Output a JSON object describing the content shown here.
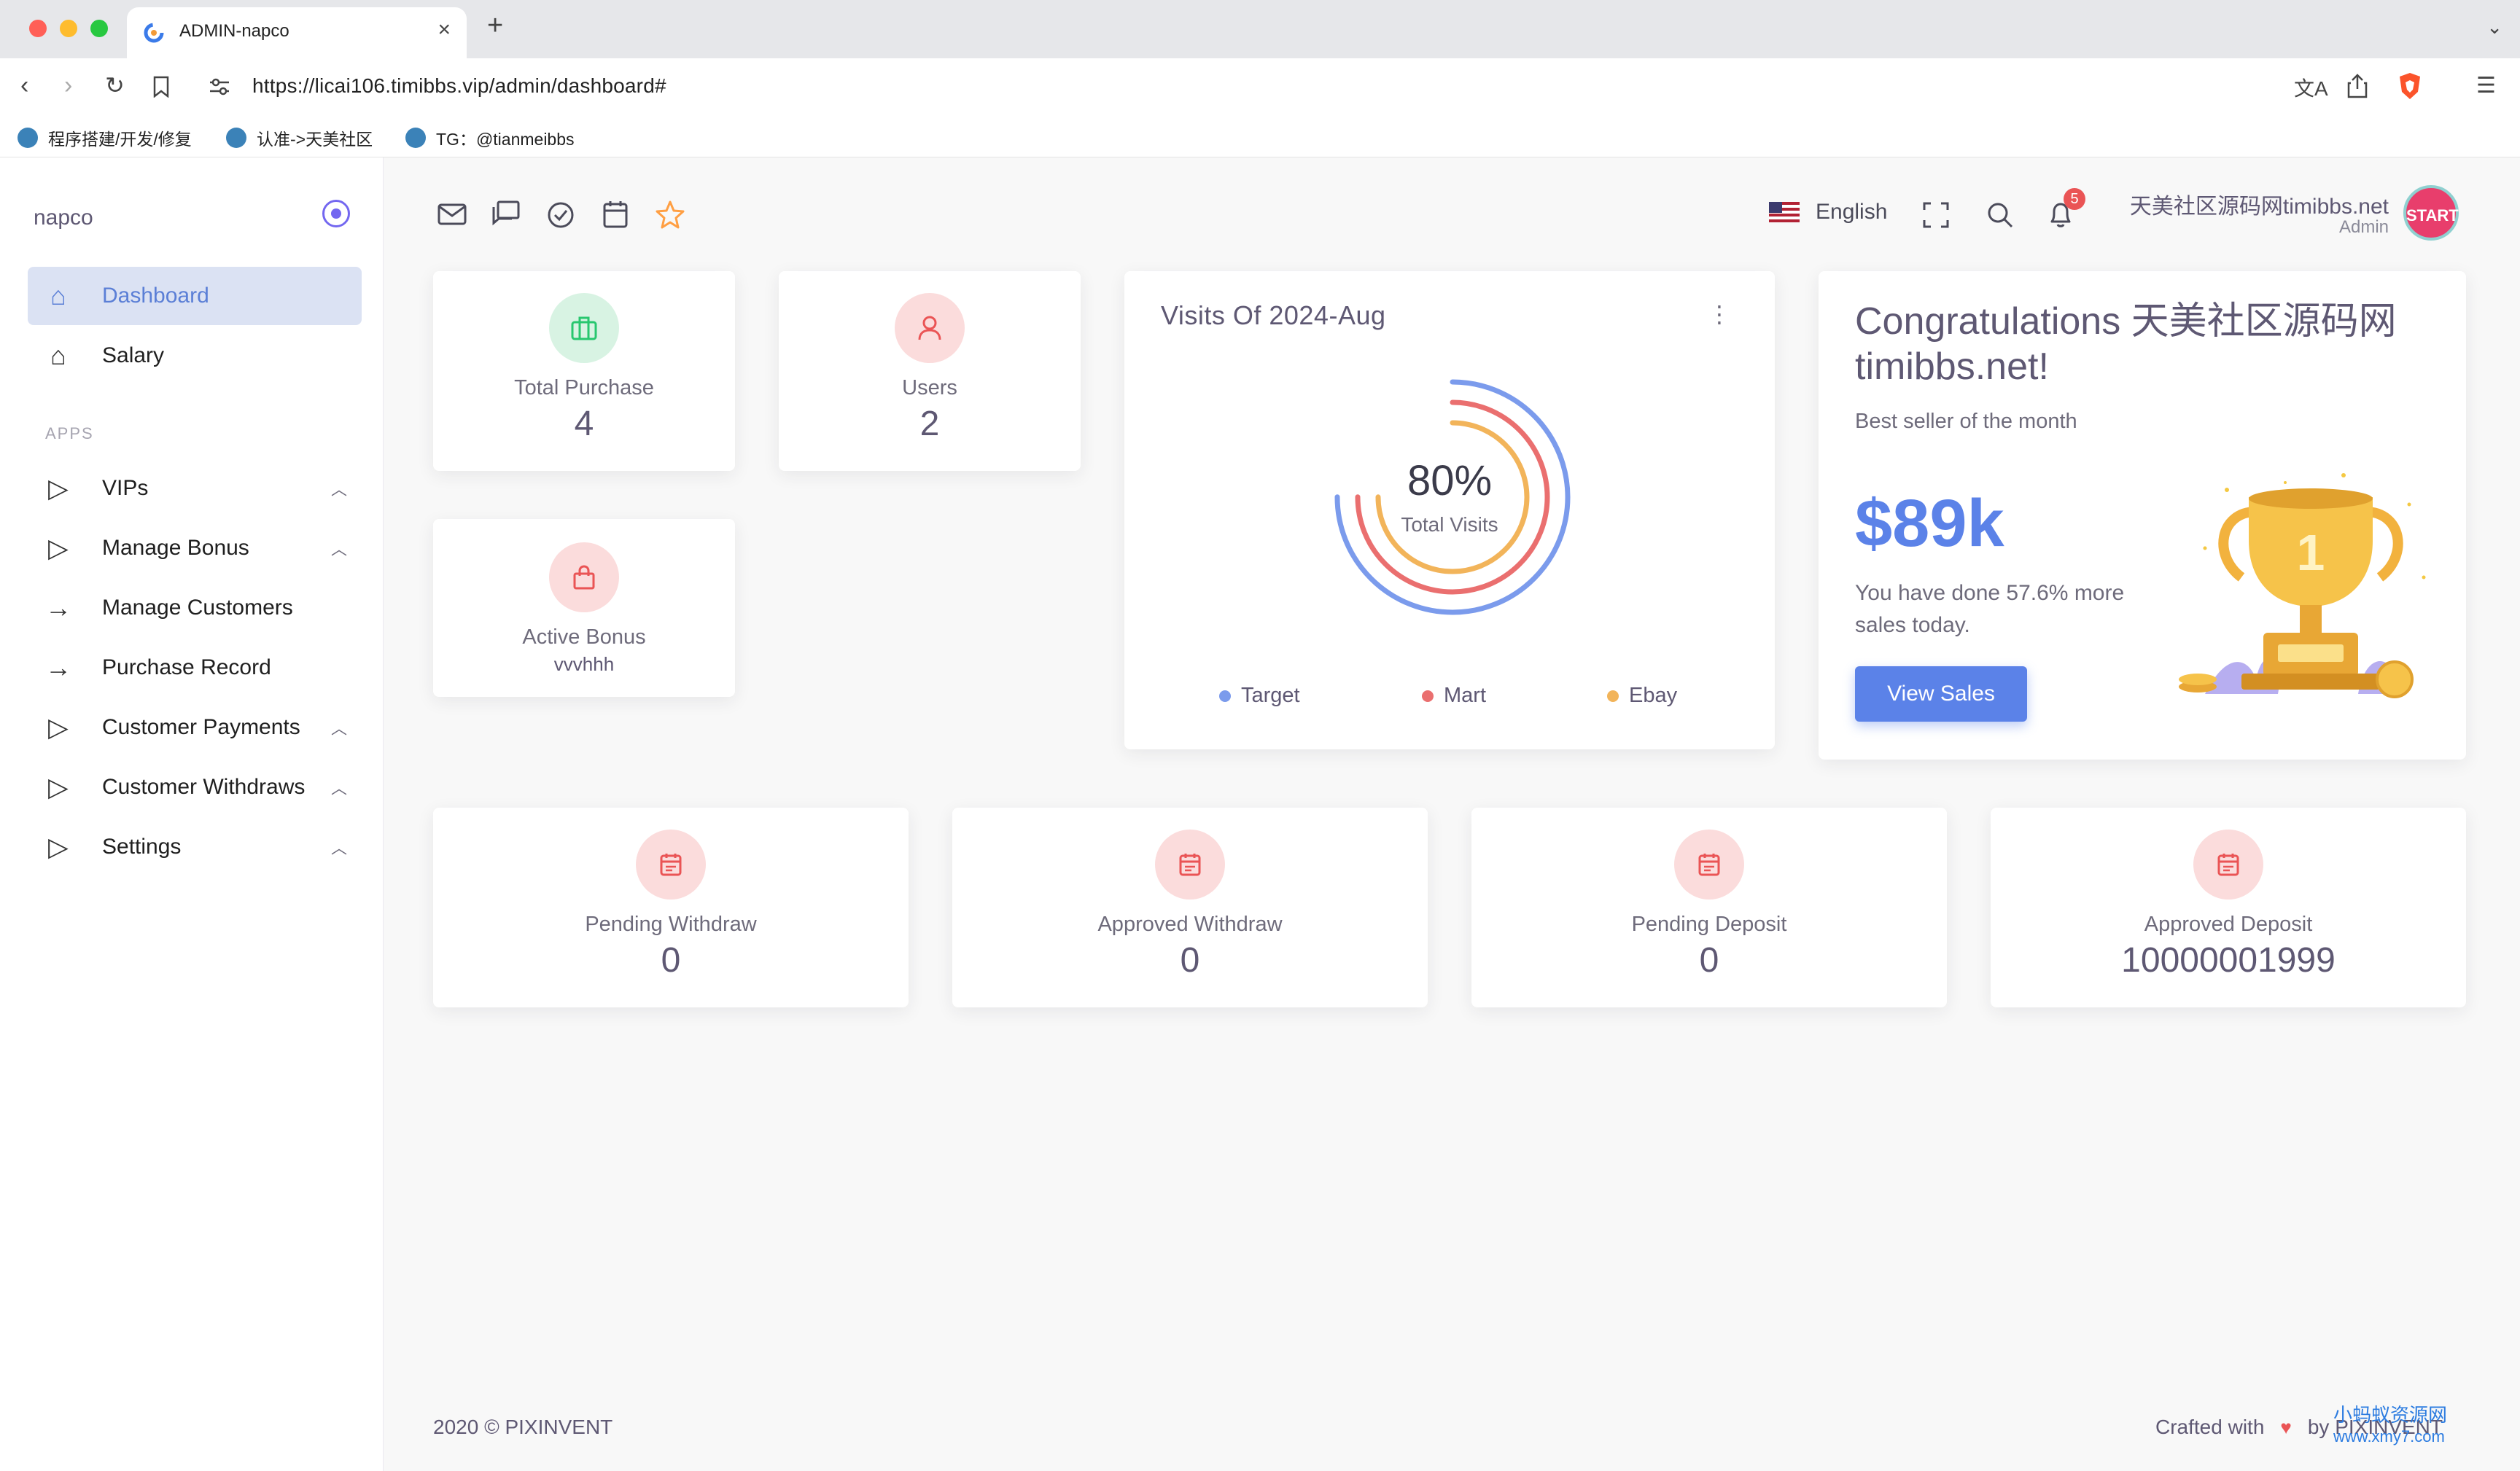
{
  "browser": {
    "tab_title": "ADMIN-napco",
    "url": "https://licai106.timibbs.vip/admin/dashboard#",
    "bookmarks": [
      "程序搭建/开发/修复",
      "认准->天美社区",
      "TG：@tianmeibbs"
    ]
  },
  "sidebar": {
    "brand": "napco",
    "section_label": "APPS",
    "items": [
      {
        "label": "Dashboard",
        "icon": "home-icon",
        "active": true
      },
      {
        "label": "Salary",
        "icon": "home-icon"
      },
      {
        "label": "VIPs",
        "icon": "play-icon",
        "chevron": "^"
      },
      {
        "label": "Manage Bonus",
        "icon": "play-icon",
        "chevron": "^"
      },
      {
        "label": "Manage Customers",
        "icon": "arrow-right-icon"
      },
      {
        "label": "Purchase Record",
        "icon": "arrow-right-icon"
      },
      {
        "label": "Customer Payments",
        "icon": "play-icon",
        "chevron": "^"
      },
      {
        "label": "Customer Withdraws",
        "icon": "play-icon",
        "chevron": "^"
      },
      {
        "label": "Settings",
        "icon": "play-icon",
        "chevron": "^"
      }
    ]
  },
  "header": {
    "language": "English",
    "notification_count": "5",
    "user_name": "天美社区源码网timibbs.net",
    "user_role": "Admin",
    "avatar_text": "START"
  },
  "stats": {
    "total_purchase": {
      "label": "Total Purchase",
      "value": "4"
    },
    "users": {
      "label": "Users",
      "value": "2"
    },
    "active_bonus": {
      "label": "Active Bonus",
      "value": "vvvhhh"
    },
    "pending_withdraw": {
      "label": "Pending Withdraw",
      "value": "0"
    },
    "approved_withdraw": {
      "label": "Approved Withdraw",
      "value": "0"
    },
    "pending_deposit": {
      "label": "Pending Deposit",
      "value": "0"
    },
    "approved_deposit": {
      "label": "Approved Deposit",
      "value": "10000001999"
    }
  },
  "visits": {
    "title": "Visits Of 2024-Aug",
    "center_value": "80%",
    "center_label": "Total Visits",
    "series": [
      {
        "name": "Target",
        "color": "#7b9bec",
        "value": 0.75
      },
      {
        "name": "Mart",
        "color": "#ea6f6f",
        "value": 0.75
      },
      {
        "name": "Ebay",
        "color": "#f2b45a",
        "value": 0.75
      }
    ]
  },
  "congrats": {
    "title": "Congratulations 天美社区源码网 timibbs.net!",
    "subtitle": "Best seller of the month",
    "amount": "$89k",
    "text": "You have done 57.6% more sales today.",
    "button": "View Sales",
    "trophy_number": "1"
  },
  "footer": {
    "left": "2020 © PIXINVENT",
    "crafted": "Crafted with",
    "by": "by PIXINVENT",
    "watermark_line1": "小蚂蚁资源网",
    "watermark_line2": "www.xmy7.com"
  },
  "colors": {
    "accent": "#5b82e8",
    "success": "#28c76f",
    "danger": "#ea5455",
    "warning": "#ff9f43"
  }
}
